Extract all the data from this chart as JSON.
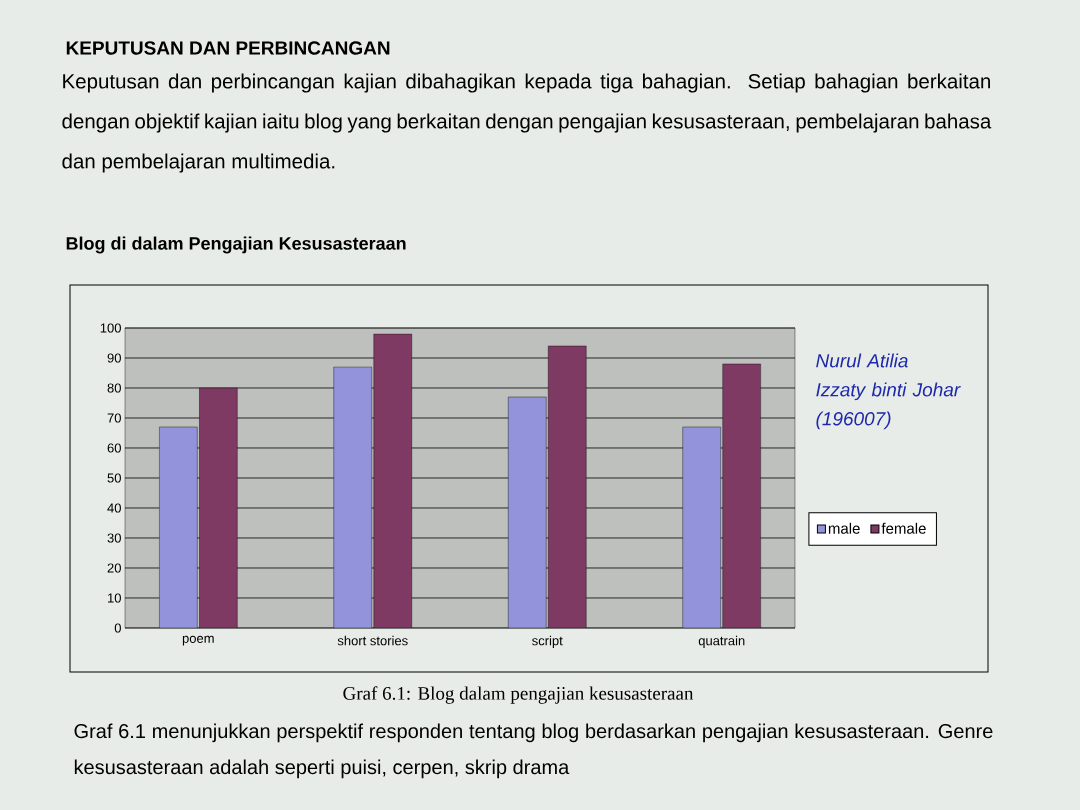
{
  "chart_data": {
    "type": "bar",
    "title": "Blog di dalam Pengajian Kesusasteraan",
    "categories": [
      "poem",
      "short stories",
      "script",
      "quatrain"
    ],
    "series": [
      {
        "name": "male",
        "color": "#9393dc",
        "values": [
          67,
          87,
          77,
          67
        ]
      },
      {
        "name": "female",
        "color": "#7e3a62",
        "values": [
          80,
          98,
          94,
          88
        ]
      }
    ],
    "ylim": [
      0,
      100
    ],
    "yticks": [
      0,
      10,
      20,
      30,
      40,
      50,
      60,
      70,
      80,
      90,
      100
    ],
    "grid": "y",
    "legend": "right",
    "annotations": [
      "KEPUTUSAN DAN PERBINCANGAN",
      "Keputusan dan perbincangan kajian dibahagikan kepada tiga bahagian. Setiap bahagian berkaitan dengan objektif kajian iaitu blog yang berkaitan dengan pengajian kesusasteraan, pembelajaran bahasa dan pembelajaran multimedia.",
      "Nurul Atilia Izzaty binti Johar (196007)",
      "Graf 6.1: Blog dalam pengajian kesusasteraan",
      "Graf 6.1 menunjukkan perspektif responden tentang blog berdasarkan pengajian kesusasteraan. Genre kesusasteraan adalah seperti puisi, cerpen, skrip drama"
    ]
  }
}
